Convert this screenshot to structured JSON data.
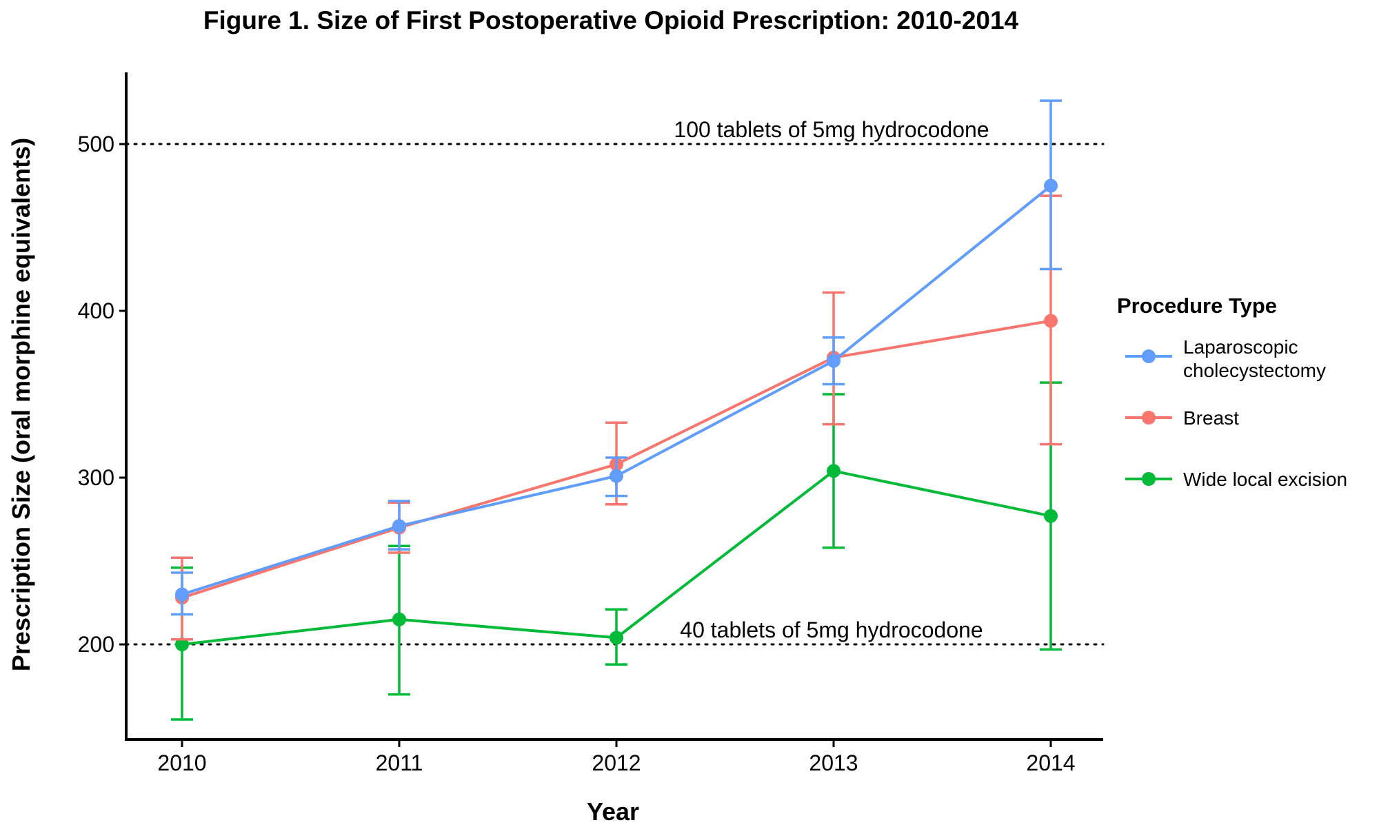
{
  "chart_data": {
    "type": "line",
    "title": "Figure 1. Size of First Postoperative Opioid Prescription: 2010-2014",
    "xlabel": "Year",
    "ylabel": "Prescription Size (oral morphine equivalents)",
    "x": [
      "2010",
      "2011",
      "2012",
      "2013",
      "2014"
    ],
    "ylim": [
      143,
      543
    ],
    "yticks": [
      200,
      300,
      400,
      500
    ],
    "grid": false,
    "legend": {
      "title": "Procedure Type",
      "position": "right"
    },
    "reference_lines": [
      {
        "y": 500,
        "label": "100 tablets of 5mg hydrocodone"
      },
      {
        "y": 200,
        "label": "40 tablets of 5mg hydrocodone"
      }
    ],
    "series": [
      {
        "name": "Laparoscopic cholecystectomy",
        "legend_lines": [
          "Laparoscopic",
          "cholecystectomy"
        ],
        "color": "#619CFF",
        "values": [
          230,
          271,
          301,
          370,
          475
        ],
        "error_low": [
          218,
          257,
          289,
          356,
          425
        ],
        "error_high": [
          243,
          286,
          312,
          384,
          526
        ]
      },
      {
        "name": "Breast",
        "legend_lines": [
          "Breast"
        ],
        "color": "#F8766D",
        "values": [
          228,
          270,
          308,
          372,
          394
        ],
        "error_low": [
          203,
          255,
          284,
          332,
          320
        ],
        "error_high": [
          252,
          285,
          333,
          411,
          469
        ]
      },
      {
        "name": "Wide local excision",
        "legend_lines": [
          "Wide local excision"
        ],
        "color": "#00BA38",
        "values": [
          200,
          215,
          204,
          304,
          277
        ],
        "error_low": [
          155,
          170,
          188,
          258,
          197
        ],
        "error_high": [
          246,
          259,
          221,
          350,
          357
        ]
      }
    ]
  }
}
